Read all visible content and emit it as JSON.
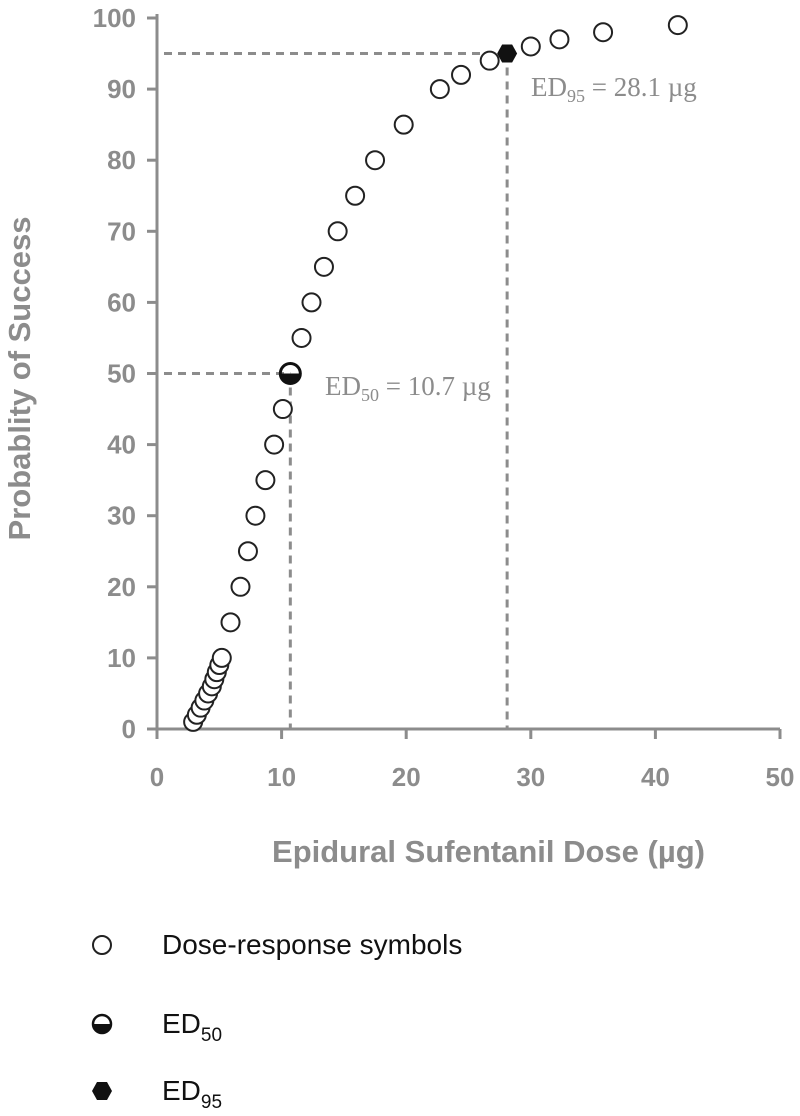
{
  "chart_data": {
    "type": "scatter",
    "xlabel": "Epidural Sufentanil Dose (µg)",
    "ylabel": "Probablity of Success",
    "xlim": [
      0,
      50
    ],
    "ylim": [
      0,
      100
    ],
    "x_ticks": [
      0,
      10,
      20,
      30,
      40,
      50
    ],
    "y_ticks": [
      0,
      10,
      20,
      30,
      40,
      50,
      60,
      70,
      80,
      90,
      100
    ],
    "grid": false,
    "legend_position": "below",
    "series": [
      {
        "name": "Dose-response symbols",
        "marker": "open-circle",
        "x": [
          2.9,
          3.2,
          3.5,
          3.8,
          4.1,
          4.4,
          4.6,
          4.8,
          5.0,
          5.2,
          5.9,
          6.7,
          7.3,
          7.9,
          8.7,
          9.4,
          10.1,
          11.6,
          12.4,
          13.4,
          14.5,
          15.9,
          17.5,
          19.8,
          22.7,
          24.4,
          26.7,
          30.0,
          32.3,
          35.8,
          41.8
        ],
        "y": [
          1,
          2,
          3,
          4,
          5,
          6,
          7,
          8,
          9,
          10,
          15,
          20,
          25,
          30,
          35,
          40,
          45,
          55,
          60,
          65,
          70,
          75,
          80,
          85,
          90,
          92,
          94,
          96,
          97,
          98,
          99
        ]
      },
      {
        "name": "ED50",
        "marker": "half-filled-circle",
        "x": [
          10.7
        ],
        "y": [
          50
        ]
      },
      {
        "name": "ED95",
        "marker": "filled-hexagon",
        "x": [
          28.1
        ],
        "y": [
          95
        ]
      }
    ],
    "reference_lines": [
      {
        "x": 10.7,
        "y": 50
      },
      {
        "x": 28.1,
        "y": 95
      }
    ],
    "annotations": [
      {
        "prefix": "ED",
        "sub": "50",
        "text": " = 10.7 µg",
        "x": 10.7,
        "y": 50
      },
      {
        "prefix": "ED",
        "sub": "95",
        "text": " = 28.1 µg",
        "x": 28.1,
        "y": 95
      }
    ],
    "colors": {
      "axis": "#8c8c8c",
      "reference": "#8c8c8c",
      "marker_stroke": "#222222",
      "marker_fill": "#111111",
      "annotation": "#8c8c8c"
    }
  },
  "legend": [
    {
      "label": "Dose-response symbols",
      "sub": "",
      "icon": "open-circle-icon"
    },
    {
      "label": "ED",
      "sub": "50",
      "icon": "half-filled-circle-icon"
    },
    {
      "label": "ED",
      "sub": "95",
      "icon": "filled-hexagon-icon"
    }
  ]
}
